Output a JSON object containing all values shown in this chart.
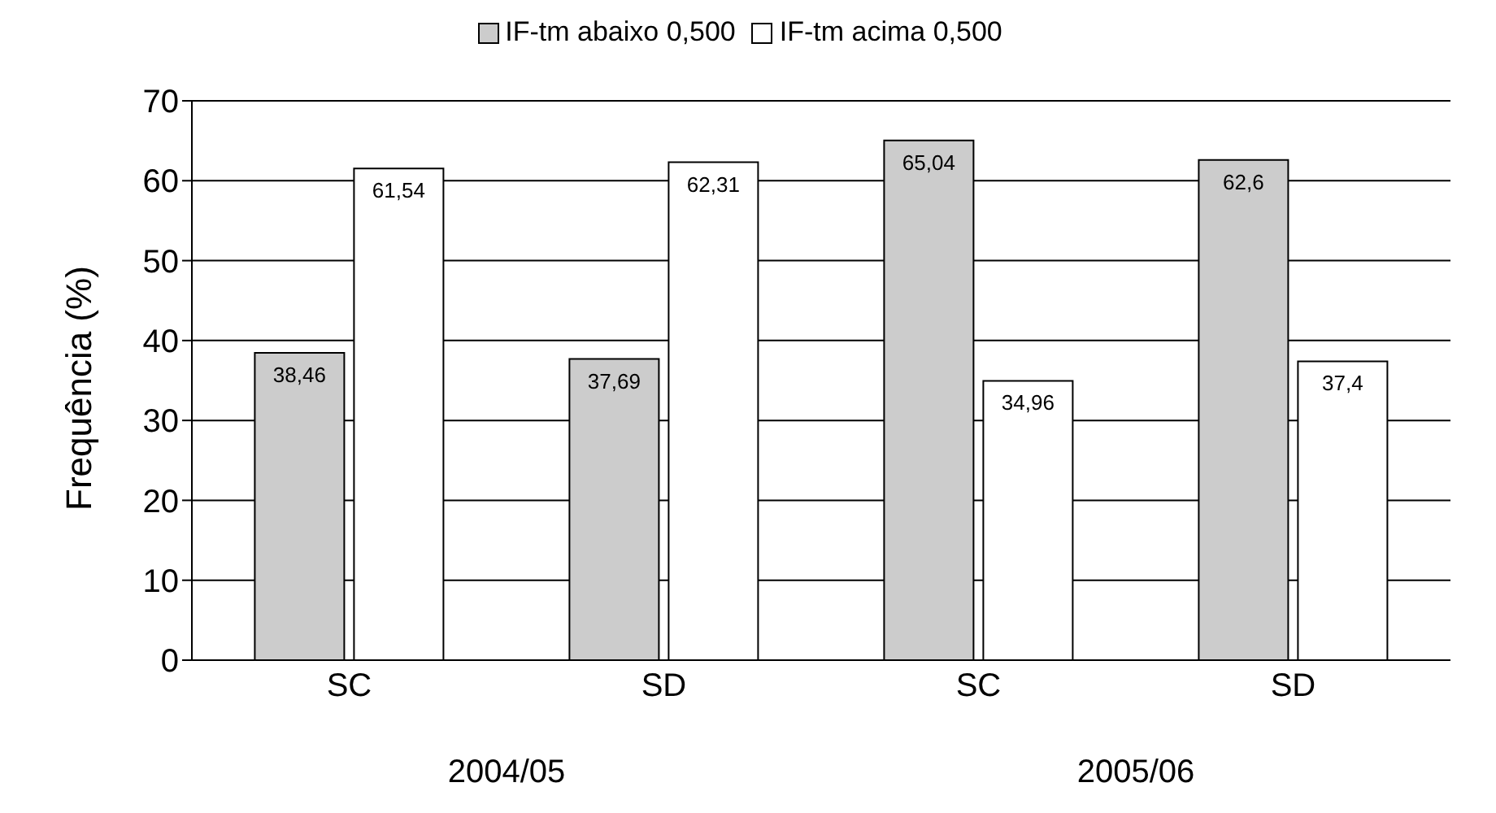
{
  "chart_data": {
    "type": "bar",
    "categories": [
      "SC",
      "SD",
      "SC",
      "SD"
    ],
    "ylabel": "Frequência (%)",
    "ylim": [
      0,
      70
    ],
    "yticks": [
      0,
      10,
      20,
      30,
      40,
      50,
      60,
      70
    ],
    "grid": "y",
    "legend": "top",
    "series": [
      {
        "name": "IF-tm abaixo 0,500",
        "color": "#cccccc",
        "values": [
          38.46,
          37.69,
          65.04,
          62.6
        ],
        "value_labels": [
          "38,46",
          "37,69",
          "65,04",
          "62,6"
        ]
      },
      {
        "name": "IF-tm acima 0,500",
        "color": "#ffffff",
        "values": [
          61.54,
          62.31,
          34.96,
          37.4
        ],
        "value_labels": [
          "61,54",
          "62,31",
          "34,96",
          "37,4"
        ]
      }
    ],
    "annotations": [
      "2004/05",
      "2005/06"
    ]
  }
}
